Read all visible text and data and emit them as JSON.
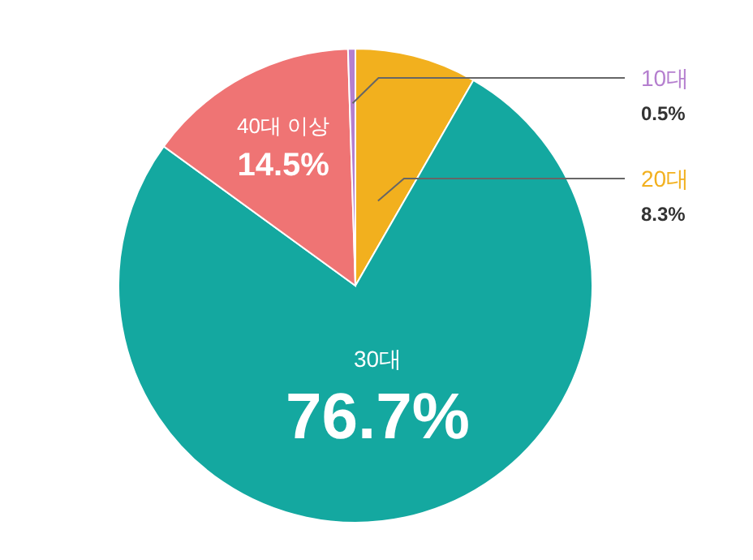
{
  "chart_data": {
    "type": "pie",
    "categories": [
      "20대",
      "30대",
      "40대 이상",
      "10대"
    ],
    "values": [
      8.3,
      76.7,
      14.5,
      0.5
    ],
    "colors": [
      "#f2b01e",
      "#14a8a0",
      "#ef7474",
      "#b57fcf"
    ],
    "value_labels": [
      "8.3%",
      "76.7%",
      "14.5%",
      "0.5%"
    ]
  }
}
